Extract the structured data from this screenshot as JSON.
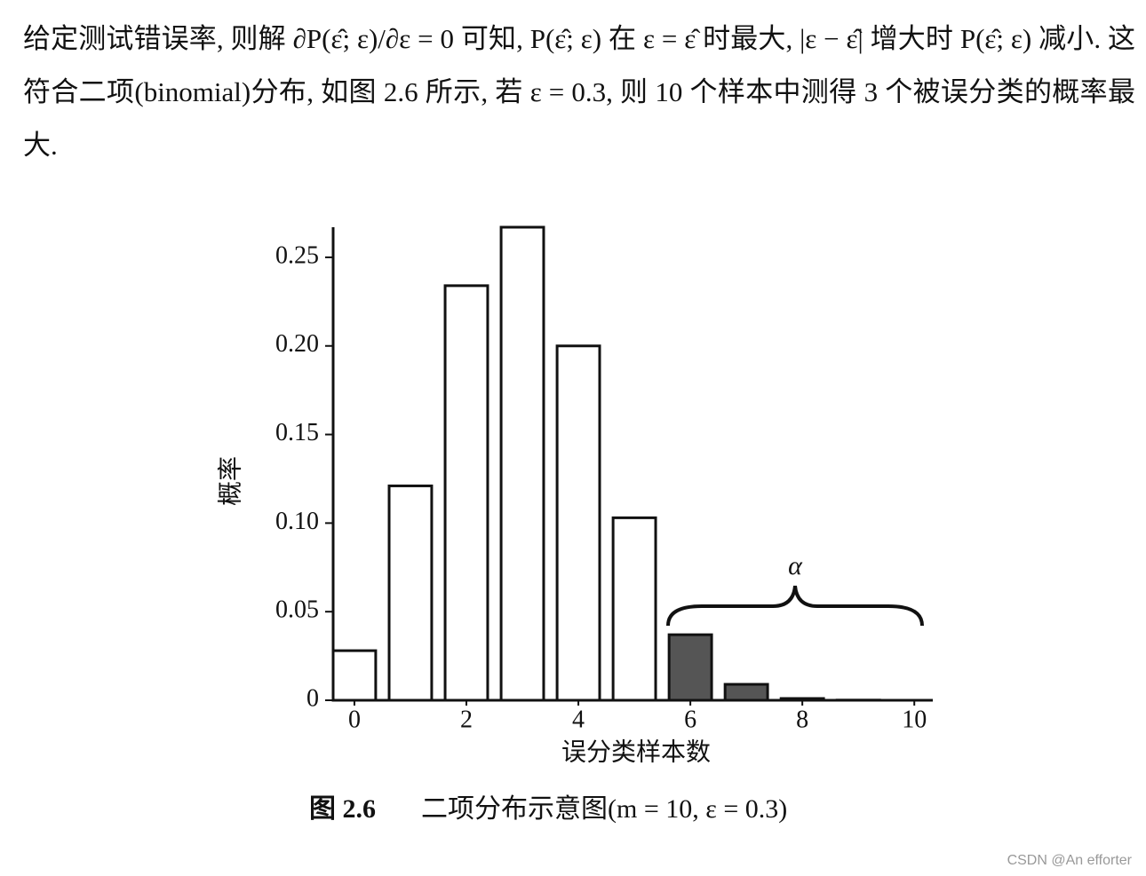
{
  "paragraph": "给定测试错误率, 则解 ∂P(ε̂; ε)/∂ε = 0 可知, P(ε̂; ε) 在 ε = ε̂ 时最大, |ε − ε̂| 增大时 P(ε̂; ε) 减小. 这符合二项(binomial)分布, 如图 2.6 所示, 若 ε = 0.3, 则 10 个样本中测得 3 个被误分类的概率最大.",
  "chart_data": {
    "type": "bar",
    "x": [
      0,
      1,
      2,
      3,
      4,
      5,
      6,
      7,
      8,
      9,
      10
    ],
    "values": [
      0.028,
      0.121,
      0.234,
      0.267,
      0.2,
      0.103,
      0.037,
      0.009,
      0.001,
      0.0001,
      0
    ],
    "colors": [
      "#ffffff",
      "#ffffff",
      "#ffffff",
      "#ffffff",
      "#ffffff",
      "#ffffff",
      "#555555",
      "#555555",
      "#555555",
      "#555555",
      "#555555"
    ],
    "xlim": [
      -0.38,
      10.33
    ],
    "ylim": [
      0,
      0.267
    ],
    "xticks": [
      0,
      2,
      4,
      6,
      8,
      10
    ],
    "yticks": [
      0,
      0.05,
      {
        "value": 0.1,
        "label": "0.10"
      },
      0.15,
      {
        "value": 0.2,
        "label": "0.20"
      },
      0.25
    ],
    "x_label": "误分类样本数",
    "y_label": "概率",
    "annotation": "α"
  },
  "caption": {
    "number": "图 2.6",
    "text": "二项分布示意图(m = 10, ε = 0.3)"
  },
  "watermark": "CSDN @An efforter"
}
